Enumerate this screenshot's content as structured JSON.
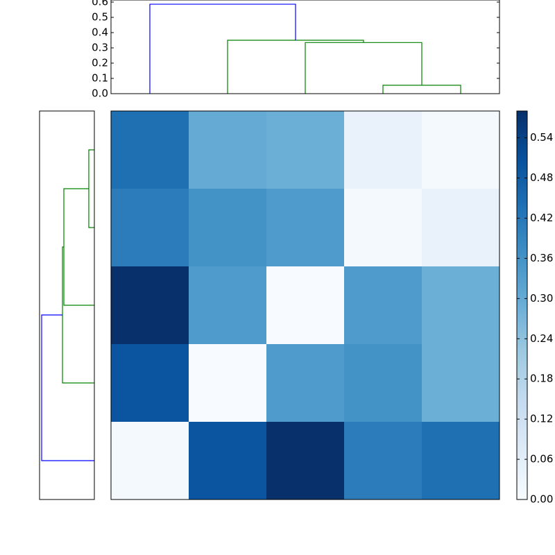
{
  "chart_data": [
    {
      "type": "dendrogram",
      "orientation": "top",
      "icoord": [
        [
          35,
          35,
          45,
          45
        ],
        [
          25,
          25,
          40,
          40
        ],
        [
          15,
          15,
          32.5,
          32.5
        ],
        [
          5,
          5,
          23.75,
          23.75
        ]
      ],
      "dcoord": [
        [
          0,
          0.055,
          0.055,
          0
        ],
        [
          0,
          0.335,
          0.335,
          0.055
        ],
        [
          0,
          0.35,
          0.35,
          0.335
        ],
        [
          0,
          0.586,
          0.586,
          0.35
        ]
      ],
      "colors": [
        "#008000",
        "#008000",
        "#008000",
        "#0000ff"
      ],
      "xlim": [
        0,
        50
      ],
      "ylim": [
        0,
        0.6
      ],
      "yticks": [
        {
          "value": 0,
          "label": "0.0"
        },
        0.1,
        0.2,
        0.3,
        0.4,
        0.5,
        0.6
      ]
    },
    {
      "type": "dendrogram",
      "orientation": "left",
      "icoord": [
        [
          5,
          5,
          15,
          15
        ],
        [
          10,
          10,
          25,
          25
        ],
        [
          17.5,
          17.5,
          35,
          35
        ],
        [
          26.25,
          26.25,
          45,
          45
        ]
      ],
      "dcoord": [
        [
          0,
          0.061,
          0.061,
          0
        ],
        [
          0.061,
          0.334,
          0.334,
          0
        ],
        [
          0.334,
          0.349,
          0.349,
          0
        ],
        [
          0.349,
          0.577,
          0.577,
          0
        ]
      ],
      "colors": [
        "#008000",
        "#008000",
        "#008000",
        "#0000ff"
      ],
      "xlim": [
        0,
        0.6
      ],
      "ylim": [
        0,
        50
      ]
    },
    {
      "type": "heatmap",
      "z": [
        [
          0.44,
          0.3,
          0.29,
          0.04,
          0.01
        ],
        [
          0.41,
          0.36,
          0.34,
          0.01,
          0.04
        ],
        [
          0.58,
          0.34,
          0.0,
          0.34,
          0.29
        ],
        [
          0.5,
          0.0,
          0.34,
          0.36,
          0.29
        ],
        [
          0.01,
          0.5,
          0.58,
          0.41,
          0.44
        ]
      ],
      "colormap": [
        "#f7fbff",
        "#deebf7",
        "#c6dbef",
        "#9ecae1",
        "#6baed6",
        "#4292c6",
        "#2171b5",
        "#08519c",
        "#08306b"
      ],
      "zlim": [
        0,
        0.58
      ],
      "zticks": [
        {
          "value": 0,
          "label": "0.00"
        },
        {
          "value": 0.06,
          "label": "0.06"
        },
        {
          "value": 0.12,
          "label": "0.12"
        },
        {
          "value": 0.18,
          "label": "0.18"
        },
        {
          "value": 0.24,
          "label": "0.24"
        },
        {
          "value": 0.3,
          "label": "0.30"
        },
        {
          "value": 0.36,
          "label": "0.36"
        },
        {
          "value": 0.42,
          "label": "0.42"
        },
        {
          "value": 0.48,
          "label": "0.48"
        },
        {
          "value": 0.54,
          "label": "0.54"
        }
      ]
    }
  ]
}
